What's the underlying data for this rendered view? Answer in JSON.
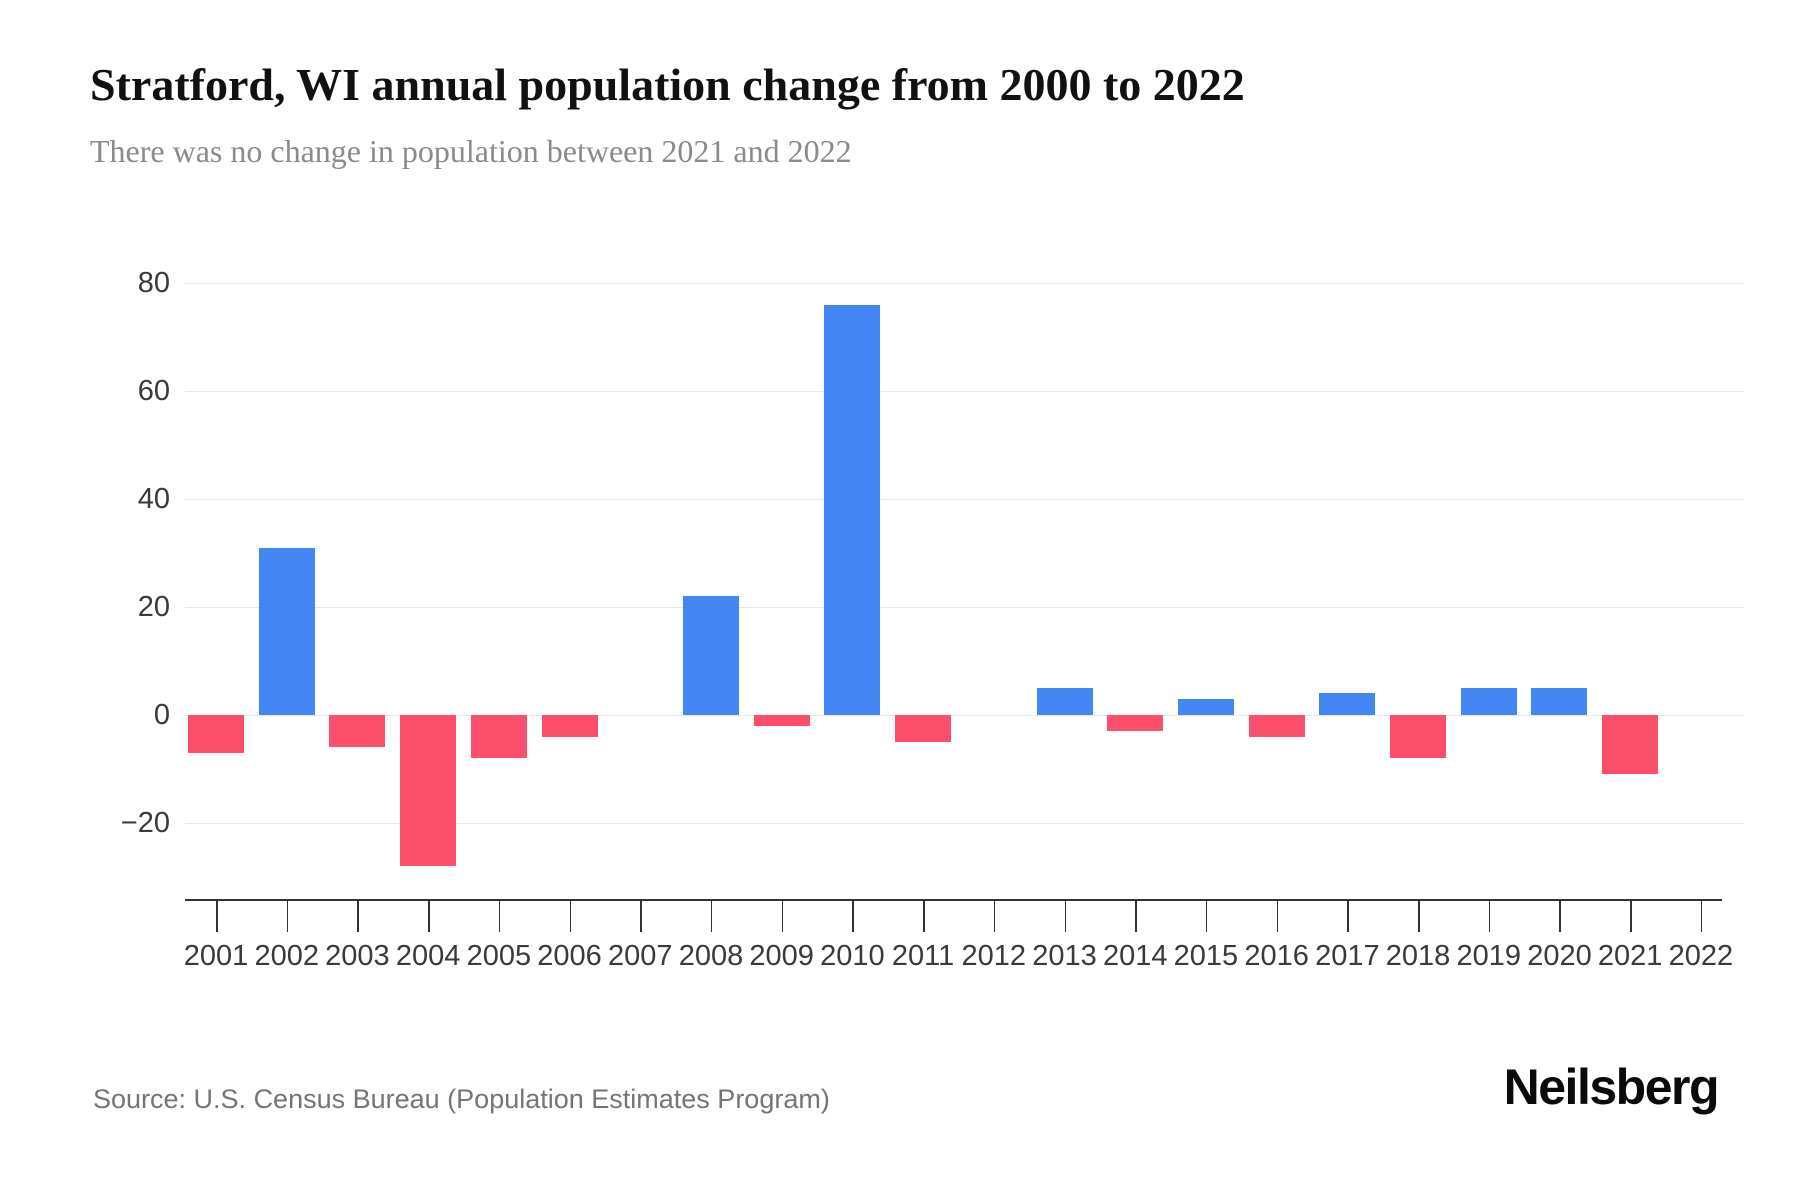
{
  "header": {
    "title": "Stratford, WI annual population change from 2000 to 2022",
    "subtitle": "There was no change in population between 2021 and 2022"
  },
  "footer": {
    "source": "Source: U.S. Census Bureau (Population Estimates Program)",
    "brand": "Neilsberg"
  },
  "chart_data": {
    "type": "bar",
    "title": "Stratford, WI annual population change from 2000 to 2022",
    "subtitle": "There was no change in population between 2021 and 2022",
    "xlabel": "",
    "ylabel": "",
    "categories": [
      "2001",
      "2002",
      "2003",
      "2004",
      "2005",
      "2006",
      "2007",
      "2008",
      "2009",
      "2010",
      "2011",
      "2012",
      "2013",
      "2014",
      "2015",
      "2016",
      "2017",
      "2018",
      "2019",
      "2020",
      "2021",
      "2022"
    ],
    "values": [
      -7,
      31,
      -6,
      -28,
      -8,
      -4,
      0,
      22,
      -2,
      76,
      -5,
      0,
      5,
      -3,
      3,
      -4,
      4,
      -8,
      5,
      5,
      -11,
      0
    ],
    "series_name": "Annual population change",
    "ylim": [
      -34,
      86
    ],
    "ytick_values": [
      80,
      60,
      40,
      20,
      0,
      -20
    ],
    "ytick_labels": [
      "80",
      "60",
      "40",
      "20",
      "0",
      "−20"
    ],
    "grid": true,
    "legend": false,
    "colors": {
      "positive_bar": "#4486f4",
      "negative_bar": "#fb4f6b",
      "gridline": "#e7e7e7",
      "axis_line": "#333333",
      "axis_label": "#3a3a3a"
    }
  }
}
